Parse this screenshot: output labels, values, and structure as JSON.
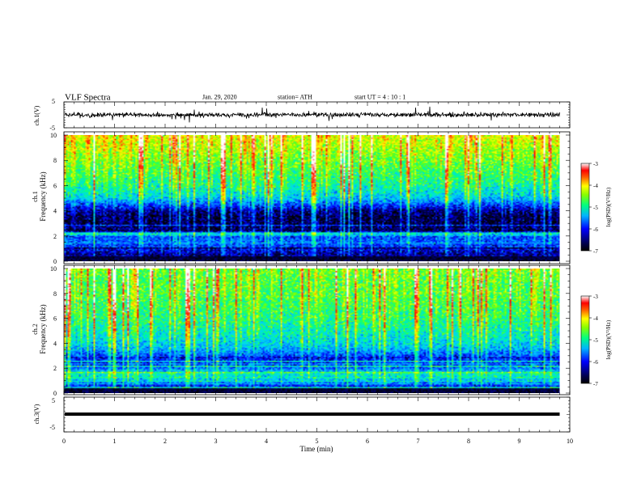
{
  "header": {
    "title": "VLF  Spectra",
    "date": "Jan. 29, 2020",
    "station": "station= ATH",
    "start": "start  UT  =   4  : 10 : 1"
  },
  "panels": {
    "ch1_wave": {
      "ylabel": "ch.1(V)",
      "y_ticks": [
        "5",
        "-5"
      ]
    },
    "ch1_spec": {
      "ylabel_top": "ch.1",
      "ylabel": "Frequency  (kHz)",
      "y_ticks": [
        "10",
        "8",
        "6",
        "4",
        "2",
        "0"
      ]
    },
    "ch2_spec": {
      "ylabel_top": "ch.2",
      "ylabel": "Frequency  (kHz)",
      "y_ticks": [
        "10",
        "8",
        "6",
        "4",
        "2",
        "0"
      ]
    },
    "ch3_wave": {
      "ylabel": "ch.3(V)",
      "y_ticks": [
        "5",
        "0",
        "-5"
      ]
    }
  },
  "x_axis": {
    "label": "Time  (min)",
    "ticks": [
      "0",
      "1",
      "2",
      "3",
      "4",
      "5",
      "6",
      "7",
      "8",
      "9",
      "10"
    ]
  },
  "colorbar": {
    "label": "log(PSD)(V²/Hz)",
    "ticks": [
      "-3",
      "-4",
      "-5",
      "-6",
      "-7"
    ]
  },
  "colors": {
    "low": "#000060",
    "mid": "#00c8ff",
    "high": "#ff0000",
    "trace": "#000000"
  },
  "chart_data": {
    "type": "heatmap",
    "title": "VLF  Spectra",
    "xlabel": "Time  (min)",
    "xlim": [
      0,
      10
    ],
    "data_end_min": 9.8,
    "channels": [
      {
        "name": "ch.1",
        "ylabel": "Frequency  (kHz)",
        "ylim": [
          0,
          10
        ],
        "psd_profile_khz": [
          [
            0,
            -6.4
          ],
          [
            0.5,
            -6.6
          ],
          [
            1.0,
            -6.3
          ],
          [
            1.5,
            -6.0
          ],
          [
            2.0,
            -6.1
          ],
          [
            2.5,
            -6.7
          ],
          [
            3.0,
            -6.8
          ],
          [
            3.5,
            -6.8
          ],
          [
            4.0,
            -6.6
          ],
          [
            4.5,
            -6.1
          ],
          [
            5.0,
            -5.6
          ],
          [
            6.0,
            -5.2
          ],
          [
            7.0,
            -5.0
          ],
          [
            8.0,
            -4.8
          ],
          [
            9.0,
            -4.6
          ],
          [
            10.0,
            -4.4
          ]
        ]
      },
      {
        "name": "ch.2",
        "ylabel": "Frequency  (kHz)",
        "ylim": [
          0,
          10
        ],
        "psd_profile_khz": [
          [
            0,
            -6.2
          ],
          [
            0.5,
            -6.3
          ],
          [
            1.0,
            -5.6
          ],
          [
            1.5,
            -5.3
          ],
          [
            2.0,
            -6.0
          ],
          [
            2.5,
            -6.3
          ],
          [
            3.0,
            -6.1
          ],
          [
            3.5,
            -5.7
          ],
          [
            4.0,
            -5.5
          ],
          [
            5.0,
            -5.3
          ],
          [
            6.0,
            -5.1
          ],
          [
            7.0,
            -5.0
          ],
          [
            8.0,
            -4.9
          ],
          [
            9.0,
            -4.9
          ],
          [
            10.0,
            -4.8
          ]
        ]
      }
    ],
    "waveforms": [
      {
        "name": "ch.1(V)",
        "ylim": [
          -5,
          5
        ],
        "mean": 0,
        "noise_amplitude": 1.2
      },
      {
        "name": "ch.3(V)",
        "ylim": [
          -5,
          5
        ],
        "mean": 0,
        "noise_amplitude": 0
      }
    ],
    "colorbar_range": [
      -7,
      -3
    ]
  }
}
